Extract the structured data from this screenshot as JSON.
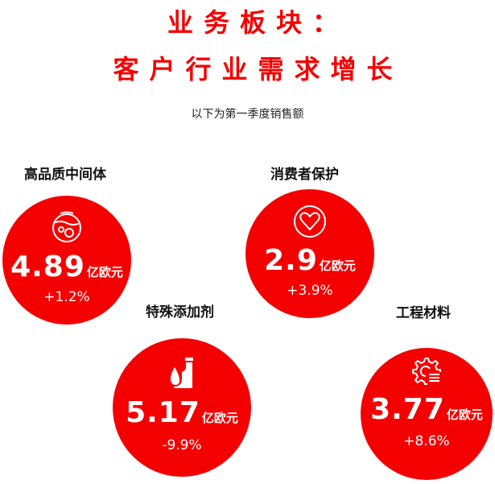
{
  "header": {
    "title_line1": "业务板块：",
    "title_line2": "客户行业需求增长",
    "subtitle": "以下为第一季度销售额"
  },
  "accent_color": "#f50000",
  "segments": [
    {
      "name": "高品质中间体",
      "value": "4.89",
      "unit": "亿欧元",
      "change": "+1.2%",
      "icon": "flask-bubbles-icon"
    },
    {
      "name": "消费者保护",
      "value": "2.9",
      "unit": "亿欧元",
      "change": "+3.9%",
      "icon": "heart-icon"
    },
    {
      "name": "特殊添加剂",
      "value": "5.17",
      "unit": "亿欧元",
      "change": "-9.9%",
      "icon": "drop-bottle-icon"
    },
    {
      "name": "工程材料",
      "value": "3.77",
      "unit": "亿欧元",
      "change": "+8.6%",
      "icon": "gear-list-icon"
    }
  ]
}
